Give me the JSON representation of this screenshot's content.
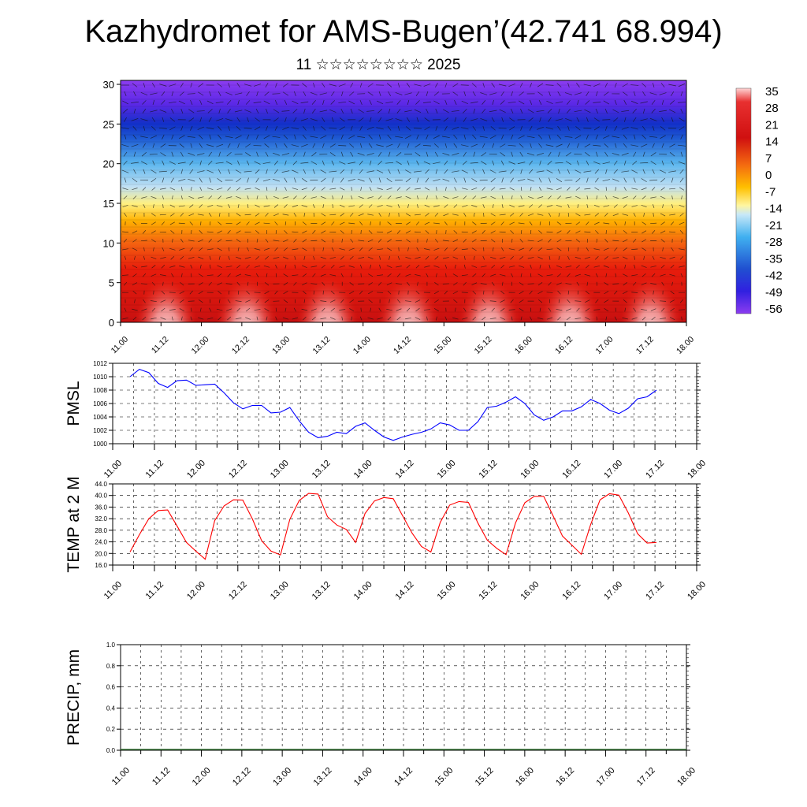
{
  "page": {
    "title": "Kazhydromet for AMS-Bugen’(42.741 68.994)",
    "subtitle": "11 ☆☆☆☆☆☆☆☆ 2025"
  },
  "chart_data": [
    {
      "type": "heatmap",
      "title": "",
      "description_key": "cross-section",
      "ylim": [
        0,
        30.5
      ],
      "y_ticks": [
        "0",
        "5",
        "10",
        "15",
        "20",
        "25",
        "30"
      ],
      "x_ticks": [
        "11.00",
        "11.12",
        "12.00",
        "12.12",
        "13.00",
        "13.12",
        "14.00",
        "14.12",
        "15.00",
        "15.12",
        "16.00",
        "16.12",
        "17.00",
        "17.12",
        "18.00"
      ],
      "colorbar_labels": [
        "35",
        "28",
        "21",
        "14",
        "7",
        "0",
        "-7",
        "-14",
        "-21",
        "-28",
        "-35",
        "-42",
        "-49",
        "-56"
      ],
      "vectors": true
    },
    {
      "type": "line",
      "ylabel": "PMSL",
      "ylim": [
        1000,
        1012
      ],
      "y_ticks": [
        "1012",
        "1010",
        "1008",
        "1006",
        "1004",
        "1002",
        "1000"
      ],
      "x_ticks": [
        "11.00",
        "11.12",
        "12.00",
        "12.12",
        "13.00",
        "13.12",
        "14.00",
        "14.12",
        "15.00",
        "15.12",
        "16.00",
        "16.12",
        "17.00",
        "17.12",
        "18.00"
      ],
      "series": [
        {
          "color": "#0000ff",
          "values": [
            1010.0,
            1011.1,
            1010.6,
            1009.0,
            1008.4,
            1009.4,
            1009.5,
            1008.7,
            1008.8,
            1008.9,
            1007.6,
            1006.1,
            1005.2,
            1005.7,
            1005.7,
            1004.6,
            1004.7,
            1005.4,
            1003.4,
            1001.7,
            1000.9,
            1001.1,
            1001.7,
            1001.5,
            1002.6,
            1003.1,
            1002.0,
            1001.0,
            1000.5,
            1001.0,
            1001.4,
            1001.7,
            1002.2,
            1003.1,
            1002.8,
            1002.0,
            1002.0,
            1003.3,
            1005.4,
            1005.6,
            1006.2,
            1007.0,
            1006.0,
            1004.3,
            1003.5,
            1004.0,
            1004.9,
            1004.9,
            1005.5,
            1006.6,
            1006.0,
            1005.0,
            1004.5,
            1005.3,
            1006.7,
            1007.0,
            1008.0
          ]
        }
      ]
    },
    {
      "type": "line",
      "ylabel": "TEMP at 2 M",
      "ylim": [
        16,
        44
      ],
      "y_ticks": [
        "44.0",
        "40.0",
        "36.0",
        "32.0",
        "28.0",
        "24.0",
        "20.0",
        "16.0"
      ],
      "x_ticks": [
        "11.00",
        "11.12",
        "12.00",
        "12.12",
        "13.00",
        "13.12",
        "14.00",
        "14.12",
        "15.00",
        "15.12",
        "16.00",
        "16.12",
        "17.00",
        "17.12",
        "18.00"
      ],
      "series": [
        {
          "color": "#ff0000",
          "values": [
            20.5,
            26.5,
            32.0,
            34.8,
            35.0,
            29.5,
            23.8,
            20.8,
            18.0,
            31.3,
            36.4,
            38.5,
            38.4,
            32.0,
            24.4,
            20.8,
            19.5,
            31.8,
            38.3,
            40.7,
            40.5,
            32.7,
            29.8,
            28.3,
            23.8,
            33.8,
            38.1,
            39.3,
            38.9,
            33.0,
            27.0,
            22.4,
            20.5,
            30.7,
            36.7,
            37.9,
            37.6,
            30.5,
            24.6,
            21.8,
            19.6,
            30.5,
            37.5,
            39.7,
            39.7,
            33.0,
            26.0,
            22.9,
            19.7,
            30.0,
            38.5,
            40.6,
            40.1,
            34.0,
            26.8,
            23.6,
            23.8
          ]
        }
      ]
    },
    {
      "type": "bar",
      "ylabel": "PRECIP, mm",
      "ylim": [
        0,
        1
      ],
      "y_ticks": [
        "1.0",
        "0.8",
        "0.6",
        "0.4",
        "0.2",
        "0.0"
      ],
      "x_ticks": [
        "11.00",
        "11.12",
        "12.00",
        "12.12",
        "13.00",
        "13.12",
        "14.00",
        "14.12",
        "15.00",
        "15.12",
        "16.00",
        "16.12",
        "17.00",
        "17.12",
        "18.00"
      ],
      "values": []
    }
  ]
}
